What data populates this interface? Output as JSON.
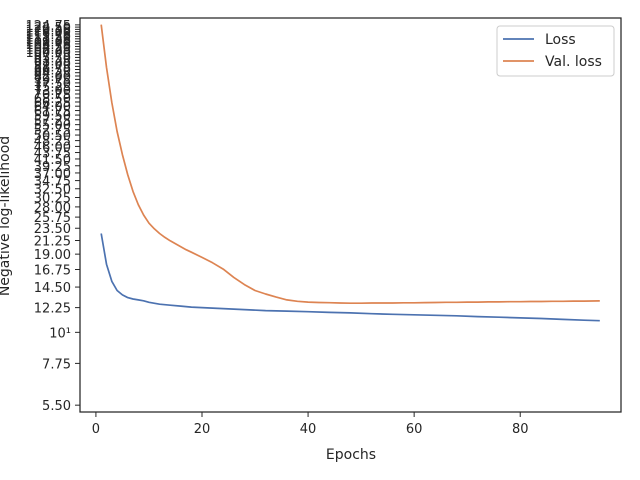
{
  "chart_data": {
    "type": "line",
    "title": "",
    "xlabel": "Epochs",
    "ylabel": "Negative log-likelihood",
    "yscale": "log",
    "grid": false,
    "legend_placement": "top-right",
    "xlim": [
      -3,
      99
    ],
    "ylim": [
      5.2,
      132
    ],
    "x_ticks": [
      0,
      20,
      40,
      60,
      80
    ],
    "y_tick_labels": [
      "5.50",
      "7.75",
      "10¹",
      "12.25",
      "14.50",
      "16.75",
      "19.00",
      "21.25",
      "23.50",
      "25.75",
      "28.00",
      "30.25",
      "32.50",
      "34.75",
      "37.00",
      "39.25",
      "41.50",
      "43.75",
      "46.00",
      "48.25",
      "50.50",
      "52.75",
      "55.00",
      "57.25",
      "59.50",
      "61.75",
      "64.00",
      "66.25",
      "68.50",
      "70.75",
      "73.00",
      "75.25",
      "77.50",
      "79.75",
      "82.00",
      "84.25",
      "86.50",
      "88.75",
      "91.00",
      "93.25",
      "95.50",
      "97.75",
      "100.00",
      "102.25",
      "104.50",
      "106.75",
      "109.00",
      "111.25",
      "113.50",
      "115.75",
      "118.00",
      "120.25",
      "122.50",
      "124.75"
    ],
    "series": [
      {
        "name": "Loss",
        "color": "#4c72b0",
        "x": [
          1,
          2,
          3,
          4,
          5,
          6,
          7,
          8,
          9,
          10,
          12,
          14,
          16,
          18,
          20,
          24,
          28,
          32,
          36,
          40,
          44,
          48,
          52,
          56,
          60,
          64,
          68,
          72,
          76,
          80,
          84,
          88,
          92,
          95
        ],
        "y": [
          22.5,
          17.5,
          15.2,
          14.1,
          13.6,
          13.3,
          13.15,
          13.05,
          12.95,
          12.8,
          12.6,
          12.5,
          12.4,
          12.3,
          12.25,
          12.15,
          12.05,
          11.95,
          11.9,
          11.85,
          11.78,
          11.73,
          11.65,
          11.6,
          11.55,
          11.5,
          11.45,
          11.38,
          11.32,
          11.26,
          11.2,
          11.12,
          11.05,
          11.0
        ]
      },
      {
        "name": "Val. loss",
        "color": "#dd8452",
        "x": [
          1,
          2,
          3,
          4,
          5,
          6,
          7,
          8,
          9,
          10,
          11,
          12,
          13,
          14,
          15,
          16,
          17,
          18,
          20,
          22,
          24,
          26,
          28,
          30,
          32,
          34,
          36,
          38,
          40,
          42,
          44,
          46,
          48,
          50,
          52,
          54,
          56,
          58,
          60,
          62,
          64,
          66,
          68,
          70,
          72,
          74,
          76,
          78,
          80,
          82,
          84,
          86,
          88,
          90,
          92,
          95
        ],
        "y": [
          125,
          88,
          66,
          52,
          43,
          36.5,
          31.8,
          28.5,
          26.2,
          24.5,
          23.4,
          22.5,
          21.8,
          21.2,
          20.7,
          20.2,
          19.7,
          19.3,
          18.5,
          17.7,
          16.8,
          15.7,
          14.8,
          14.1,
          13.7,
          13.35,
          13.05,
          12.9,
          12.82,
          12.78,
          12.75,
          12.72,
          12.7,
          12.7,
          12.72,
          12.72,
          12.72,
          12.74,
          12.74,
          12.76,
          12.78,
          12.8,
          12.8,
          12.82,
          12.82,
          12.84,
          12.84,
          12.86,
          12.86,
          12.88,
          12.88,
          12.9,
          12.9,
          12.92,
          12.92,
          12.94
        ]
      }
    ]
  }
}
